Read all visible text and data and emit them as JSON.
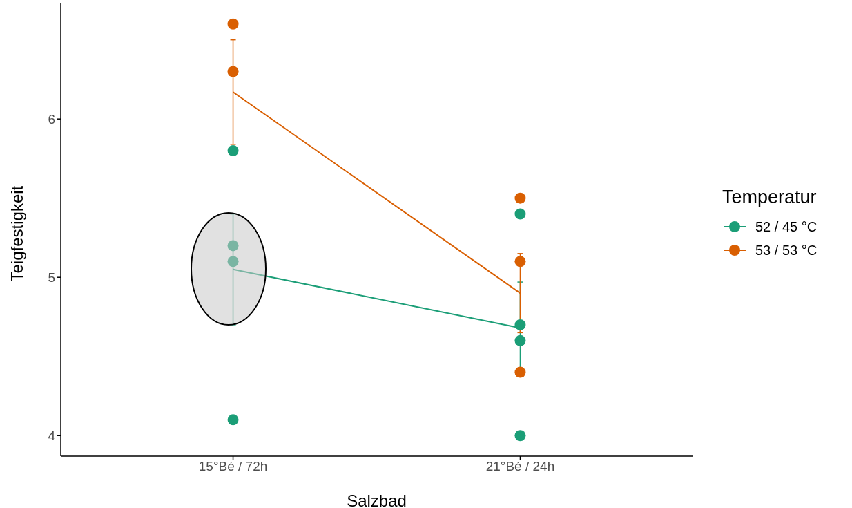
{
  "chart_data": {
    "type": "line",
    "xlabel": "Salzbad",
    "ylabel": "Teigfestigkeit",
    "legend_title": "Temperatur",
    "legend": "right",
    "categories": [
      "15°Bé / 72h",
      "21°Bé / 24h"
    ],
    "ylim": [
      3.87,
      6.73
    ],
    "yticks": [
      4,
      5,
      6
    ],
    "grid": false,
    "series": [
      {
        "type": "scatter",
        "color": "#1b9e77",
        "x": [
          "15°Bé / 72h",
          "15°Bé / 72h",
          "15°Bé / 72h",
          "15°Bé / 72h",
          "21°Bé / 24h",
          "21°Bé / 24h",
          "21°Bé / 24h",
          "21°Bé / 24h"
        ],
        "values": [
          5.8,
          5.2,
          5.1,
          4.1,
          5.4,
          4.7,
          4.6,
          4.0
        ]
      },
      {
        "type": "scatter",
        "color": "#d95f02",
        "x": [
          "15°Bé / 72h",
          "15°Bé / 72h",
          "21°Bé / 24h",
          "21°Bé / 24h",
          "21°Bé / 24h"
        ],
        "values": [
          6.6,
          6.3,
          5.5,
          5.1,
          4.4
        ]
      },
      {
        "name": "52 / 45 °C",
        "color": "#1b9e77",
        "values": [
          5.05,
          4.68
        ],
        "errors": [
          0.35,
          0.29
        ]
      },
      {
        "name": "53 / 53 °C",
        "color": "#d95f02",
        "values": [
          6.17,
          4.9
        ],
        "errors": [
          0.33,
          0.25
        ]
      }
    ]
  }
}
